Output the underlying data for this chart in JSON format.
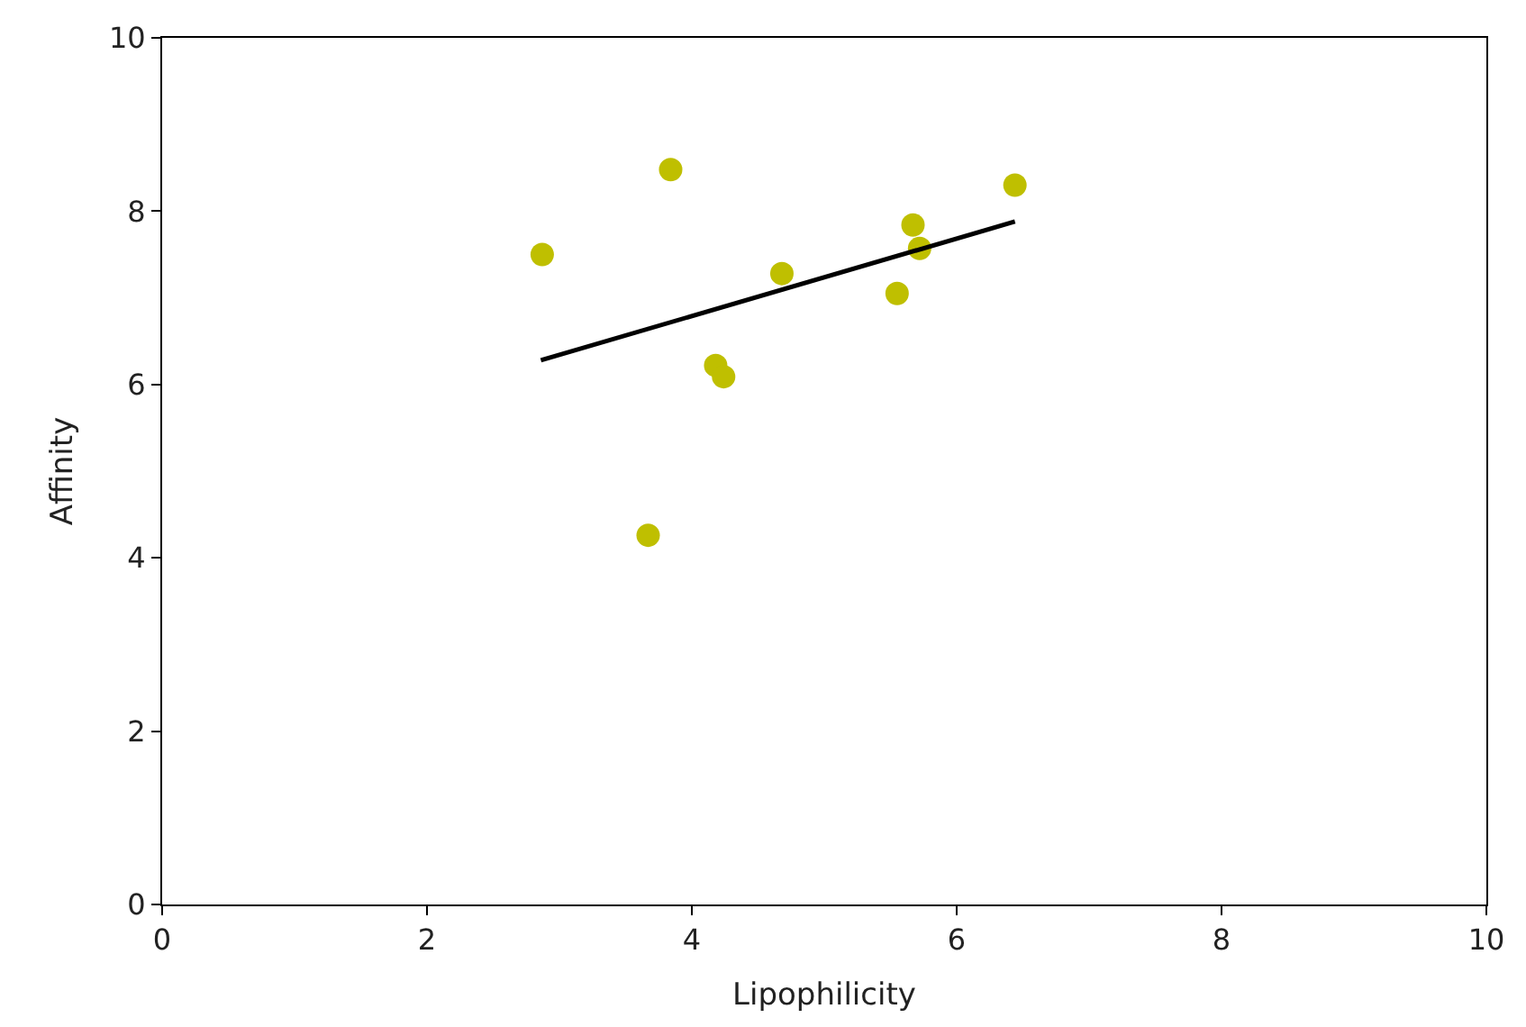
{
  "chart_data": {
    "type": "scatter",
    "xlabel": "Lipophilicity",
    "ylabel": "Affinity",
    "xlim": [
      0,
      10
    ],
    "ylim": [
      0,
      10
    ],
    "xticks": [
      0,
      2,
      4,
      6,
      8,
      10
    ],
    "yticks": [
      0,
      2,
      4,
      6,
      8,
      10
    ],
    "legend": false,
    "marker": "circle",
    "series": [
      {
        "color": "#bfbf00",
        "x": [
          2.87,
          3.84,
          4.68,
          4.18,
          4.24,
          3.67,
          5.55,
          5.67,
          5.72,
          6.44
        ],
        "values": [
          7.5,
          8.48,
          7.28,
          6.22,
          6.09,
          4.26,
          7.05,
          7.84,
          7.57,
          8.3
        ]
      },
      {
        "type": "line",
        "color": "#000000",
        "line_style": "solid",
        "marker": "none",
        "x": [
          2.86,
          6.44
        ],
        "values": [
          6.28,
          7.88
        ]
      }
    ]
  }
}
